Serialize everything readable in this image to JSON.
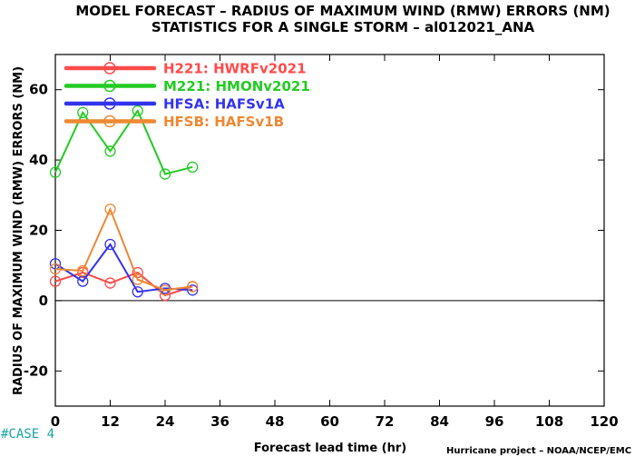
{
  "title_line1": "MODEL FORECAST – RADIUS OF MAXIMUM WIND (RMW) ERRORS (NM)",
  "title_line2": "STATISTICS FOR A SINGLE STORM – al012021_ANA",
  "case_label": "#CASE  4",
  "credit": "Hurricane project – NOAA/NCEP/EMC",
  "chart_data": {
    "type": "line",
    "xlabel": "Forecast lead time (hr)",
    "ylabel": "RADIUS OF MAXIMUM WIND (RMW) ERRORS (NM)",
    "xlim": [
      0,
      120
    ],
    "ylim": [
      -30,
      70
    ],
    "xticks": [
      0,
      12,
      24,
      36,
      48,
      60,
      72,
      84,
      96,
      108,
      120
    ],
    "yticks": [
      -20,
      0,
      20,
      40,
      60
    ],
    "zero_line": 0,
    "grid": false,
    "legend_position": "top-left",
    "series": [
      {
        "name": "H221:  HWRFv2021",
        "color": "#ff4a4a",
        "x": [
          0,
          6,
          12,
          18,
          24,
          30
        ],
        "y": [
          5.5,
          8.0,
          5.0,
          8.0,
          1.5,
          4.0
        ]
      },
      {
        "name": "M221:  HMONv2021",
        "color": "#22cc22",
        "x": [
          0,
          6,
          12,
          18,
          24,
          30
        ],
        "y": [
          36.5,
          53.5,
          42.5,
          54.0,
          36.0,
          38.0
        ]
      },
      {
        "name": "HFSA:  HAFSv1A",
        "color": "#3333ee",
        "x": [
          0,
          6,
          12,
          18,
          24,
          30
        ],
        "y": [
          10.5,
          5.5,
          16.0,
          2.5,
          3.5,
          3.0
        ]
      },
      {
        "name": "HFSB:  HAFSv1B",
        "color": "#ee8833",
        "x": [
          0,
          6,
          12,
          18,
          24,
          30
        ],
        "y": [
          9.0,
          8.5,
          26.0,
          6.0,
          3.0,
          4.0
        ]
      }
    ]
  }
}
